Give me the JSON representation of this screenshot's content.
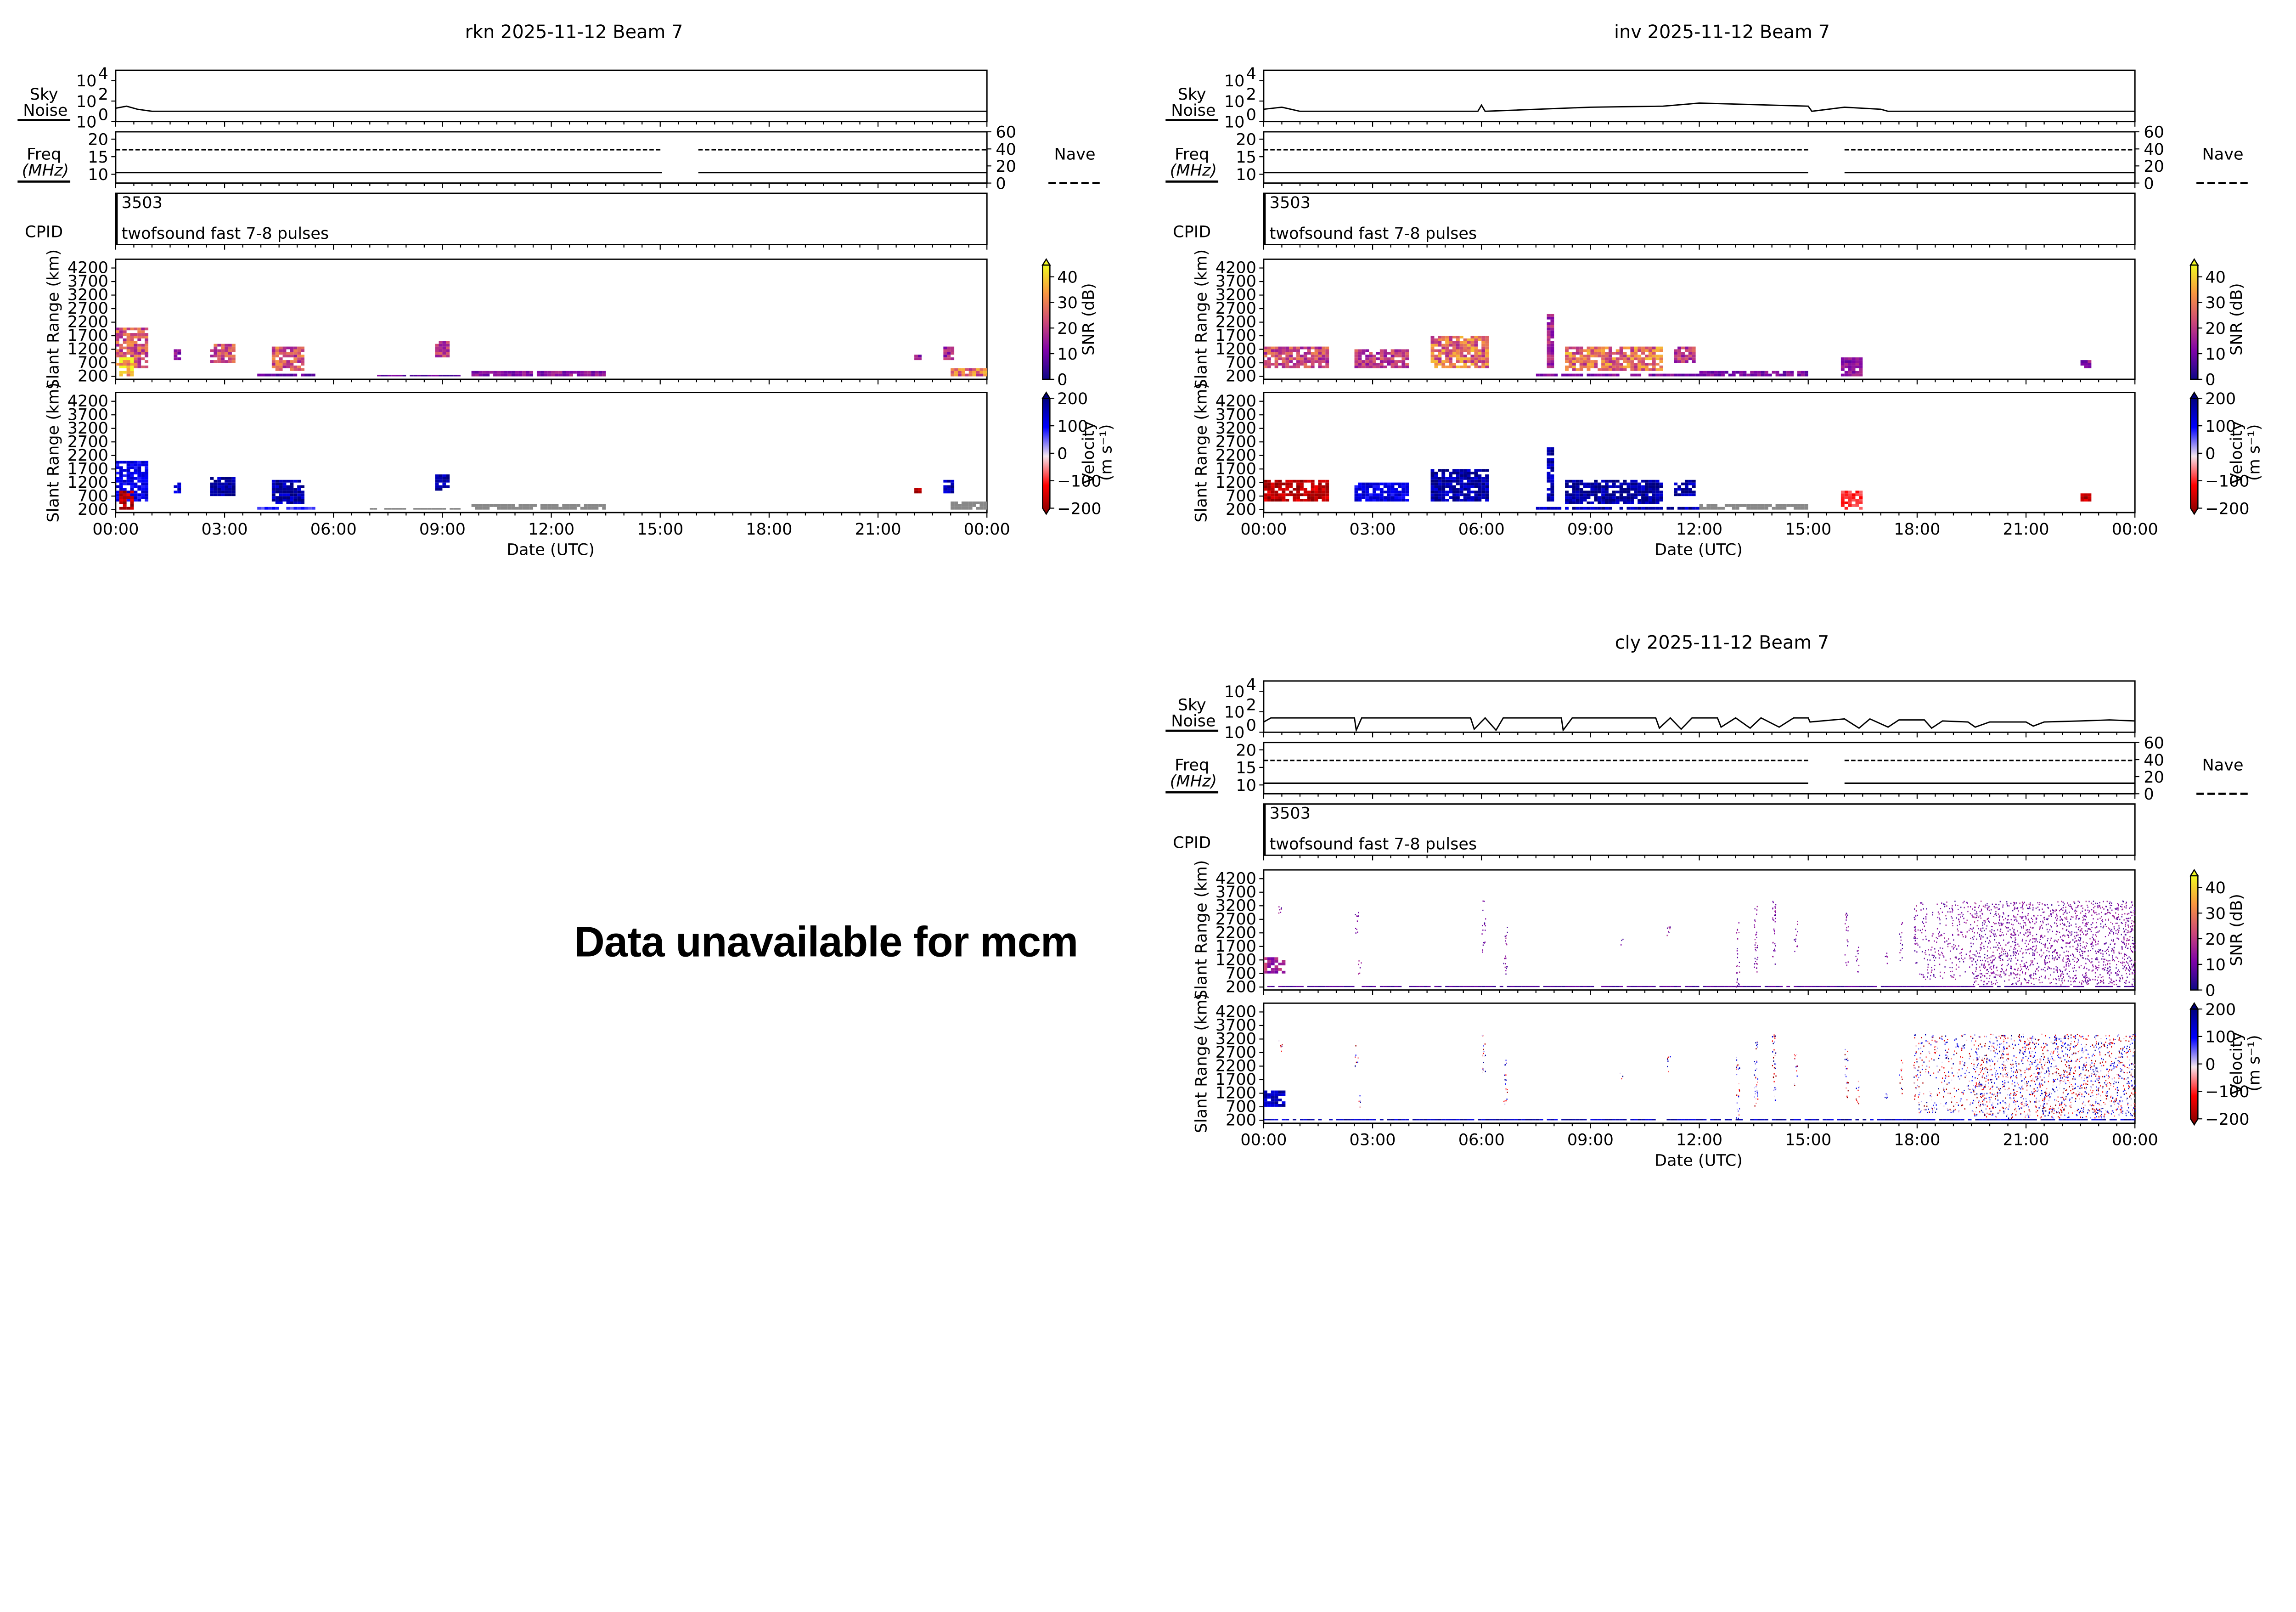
{
  "figure": {
    "unavailable_message": "Data unavailable for mcm",
    "xlabel": "Date (UTC)",
    "range_label": "Slant Range (km)",
    "sky_label_1": "Sky",
    "sky_label_2": "Noise",
    "freq_label_1": "Freq",
    "freq_label_2": "(MHz)",
    "cpid_label": "CPID",
    "nave_label": "Nave",
    "snr_label": "SNR (dB)",
    "vel_label_1": "Velocity",
    "vel_label_2": "(m s⁻¹)",
    "xticks": [
      "00:00",
      "03:00",
      "06:00",
      "09:00",
      "12:00",
      "15:00",
      "18:00",
      "21:00",
      "00:00"
    ],
    "range_ticks": [
      "4200",
      "3700",
      "3200",
      "2700",
      "2200",
      "1700",
      "1200",
      "700",
      "200"
    ],
    "sky_tick_base": "10",
    "sky_tick_exponents": [
      "4",
      "2",
      "0"
    ],
    "freq_ticks": [
      "20",
      "15",
      "10"
    ],
    "nave_ticks": [
      "60",
      "40",
      "20",
      "0"
    ],
    "snr_ticks": [
      "40",
      "30",
      "20",
      "10",
      "0"
    ],
    "vel_ticks": [
      "200",
      "100",
      "0",
      "−100",
      "−200"
    ]
  },
  "colors": {
    "plasma": [
      "#0d0887",
      "#7e03a8",
      "#cc4778",
      "#f89540",
      "#f0f921"
    ],
    "velocity": [
      "#7f0000",
      "#ff0000",
      "#f5e6ee",
      "#0000ff",
      "#00007f"
    ],
    "ground_scatter": "#888888"
  },
  "chart_data": [
    {
      "type": "heatmap",
      "radar": "rkn",
      "title": "rkn 2025-11-12 Beam 7",
      "cpid": {
        "id": "3503",
        "name": "twofsound fast 7-8 pulses"
      },
      "xrange_hours": [
        0,
        24
      ],
      "range_km": [
        200,
        4200
      ],
      "snr_range_db": [
        0,
        40
      ],
      "velocity_range_ms": [
        -200,
        200
      ],
      "freq_mhz": 10.5,
      "nave": 39,
      "data_gap_hours": [
        15.05,
        16.05
      ],
      "sky_noise": [
        [
          0,
          1.3
        ],
        [
          0.3,
          1.5
        ],
        [
          0.6,
          1.2
        ],
        [
          1,
          1
        ],
        [
          24,
          1
        ]
      ],
      "patches": [
        [
          0.0,
          0.9,
          500,
          2000,
          22,
          120
        ],
        [
          0.1,
          0.5,
          200,
          900,
          38,
          -150
        ],
        [
          1.6,
          1.8,
          800,
          1200,
          12,
          140
        ],
        [
          2.6,
          3.3,
          700,
          1400,
          20,
          170
        ],
        [
          4.3,
          5.2,
          400,
          1300,
          22,
          170
        ],
        [
          3.9,
          5.5,
          200,
          300,
          8,
          80
        ],
        [
          8.8,
          9.2,
          900,
          1500,
          18,
          170
        ],
        [
          9.8,
          13.5,
          200,
          400,
          12,
          null
        ],
        [
          7.0,
          9.5,
          200,
          260,
          8,
          null
        ],
        [
          22.0,
          22.2,
          800,
          1000,
          12,
          -150
        ],
        [
          22.8,
          23.1,
          800,
          1300,
          15,
          160
        ],
        [
          23.0,
          24.0,
          200,
          500,
          25,
          null
        ]
      ],
      "scatter": []
    },
    {
      "type": "heatmap",
      "radar": "inv",
      "title": "inv 2025-11-12 Beam 7",
      "cpid": {
        "id": "3503",
        "name": "twofsound fast 7-8 pulses"
      },
      "xrange_hours": [
        0,
        24
      ],
      "range_km": [
        200,
        4200
      ],
      "snr_range_db": [
        0,
        40
      ],
      "velocity_range_ms": [
        -200,
        200
      ],
      "freq_mhz": 10.5,
      "nave": 39,
      "data_gap_hours": [
        15.0,
        16.0
      ],
      "sky_noise": [
        [
          0,
          1.2
        ],
        [
          0.5,
          1.4
        ],
        [
          1,
          1
        ],
        [
          5.9,
          1
        ],
        [
          6,
          1.6
        ],
        [
          6.1,
          1
        ],
        [
          9,
          1.4
        ],
        [
          11,
          1.5
        ],
        [
          12,
          1.8
        ],
        [
          15,
          1.5
        ],
        [
          15.1,
          1
        ],
        [
          16,
          1.4
        ],
        [
          17,
          1.2
        ],
        [
          17.2,
          1
        ],
        [
          24,
          1
        ]
      ],
      "patches": [
        [
          0.0,
          1.8,
          500,
          1300,
          20,
          -150
        ],
        [
          2.5,
          4.0,
          500,
          1200,
          18,
          120
        ],
        [
          4.6,
          6.2,
          500,
          1700,
          25,
          170
        ],
        [
          7.8,
          8.0,
          500,
          2500,
          15,
          170
        ],
        [
          8.3,
          11.0,
          400,
          1300,
          25,
          180
        ],
        [
          11.3,
          11.9,
          700,
          1300,
          18,
          170
        ],
        [
          12.0,
          15.0,
          200,
          400,
          10,
          null
        ],
        [
          7.5,
          12.0,
          200,
          300,
          10,
          160
        ],
        [
          15.9,
          16.5,
          200,
          900,
          12,
          -80
        ],
        [
          22.5,
          22.8,
          500,
          800,
          12,
          -150
        ]
      ],
      "scatter": []
    },
    {
      "type": "heatmap",
      "radar": "cly",
      "title": "cly 2025-11-12 Beam 7",
      "cpid": {
        "id": "3503",
        "name": "twofsound fast 7-8 pulses"
      },
      "xrange_hours": [
        0,
        24
      ],
      "range_km": [
        200,
        4200
      ],
      "snr_range_db": [
        0,
        40
      ],
      "velocity_range_ms": [
        -200,
        200
      ],
      "freq_mhz": 10.5,
      "nave": 39,
      "data_gap_hours": [
        15.0,
        16.0
      ],
      "sky_noise": [
        [
          0,
          1
        ],
        [
          0.2,
          1.4
        ],
        [
          2.5,
          1.4
        ],
        [
          2.55,
          0.2
        ],
        [
          2.7,
          1.4
        ],
        [
          5.7,
          1.4
        ],
        [
          5.8,
          0.3
        ],
        [
          6.1,
          1.4
        ],
        [
          6.4,
          0.2
        ],
        [
          6.6,
          1.4
        ],
        [
          8.2,
          1.4
        ],
        [
          8.25,
          0.2
        ],
        [
          8.5,
          1.4
        ],
        [
          10.8,
          1.4
        ],
        [
          10.9,
          0.4
        ],
        [
          11.2,
          1.4
        ],
        [
          11.5,
          0.3
        ],
        [
          11.8,
          1.4
        ],
        [
          12.5,
          1.4
        ],
        [
          12.6,
          0.5
        ],
        [
          13.0,
          1.4
        ],
        [
          13.4,
          0.4
        ],
        [
          13.7,
          1.4
        ],
        [
          14.2,
          0.5
        ],
        [
          14.6,
          1.4
        ],
        [
          15.0,
          1.4
        ],
        [
          15.05,
          1
        ],
        [
          16.0,
          1.3
        ],
        [
          16.4,
          0.4
        ],
        [
          16.7,
          1.3
        ],
        [
          17.2,
          0.5
        ],
        [
          17.5,
          1.2
        ],
        [
          18.2,
          1.2
        ],
        [
          18.4,
          0.4
        ],
        [
          18.7,
          1.1
        ],
        [
          19.4,
          1
        ],
        [
          19.6,
          0.5
        ],
        [
          20.0,
          1
        ],
        [
          21.0,
          1
        ],
        [
          21.2,
          0.6
        ],
        [
          21.5,
          1.0
        ],
        [
          22.5,
          1.1
        ],
        [
          23.3,
          1.2
        ],
        [
          24,
          1.1
        ]
      ],
      "patches": [
        [
          0.0,
          0.6,
          700,
          1300,
          15,
          150
        ],
        [
          0.0,
          24.0,
          200,
          240,
          6,
          150
        ]
      ],
      "scatter": [
        [
          0.4,
          0.5,
          2700,
          3200,
          0.8
        ],
        [
          2.5,
          2.6,
          2200,
          3000,
          0.8
        ],
        [
          2.6,
          2.7,
          700,
          1200,
          0.8
        ],
        [
          6.0,
          6.1,
          1500,
          3400,
          0.6
        ],
        [
          6.6,
          6.7,
          700,
          2500,
          0.7
        ],
        [
          9.8,
          9.9,
          1700,
          2000,
          0.6
        ],
        [
          11.1,
          11.2,
          2000,
          2600,
          0.7
        ],
        [
          13.0,
          13.1,
          200,
          2700,
          0.6
        ],
        [
          13.5,
          13.6,
          700,
          3200,
          0.8
        ],
        [
          14.0,
          14.1,
          900,
          3400,
          0.8
        ],
        [
          14.6,
          14.7,
          1500,
          2700,
          0.6
        ],
        [
          16.0,
          16.1,
          1000,
          3000,
          0.6
        ],
        [
          16.3,
          16.4,
          700,
          1700,
          0.6
        ],
        [
          17.1,
          17.2,
          1000,
          1500,
          0.6
        ],
        [
          17.5,
          17.6,
          1200,
          2600,
          0.6
        ],
        [
          17.9,
          18.0,
          1000,
          3400,
          0.7
        ],
        [
          18.0,
          19.5,
          500,
          3400,
          0.35
        ],
        [
          19.5,
          24.0,
          300,
          3400,
          0.7
        ]
      ]
    }
  ]
}
